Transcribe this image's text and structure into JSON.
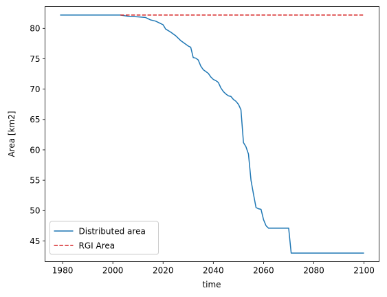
{
  "chart_data": {
    "type": "line",
    "title": "",
    "xlabel": "time",
    "ylabel": "Area [km2]",
    "xlim": [
      1973,
      2106
    ],
    "ylim": [
      41.6,
      83.6
    ],
    "xticks": [
      1980,
      2000,
      2020,
      2040,
      2060,
      2080,
      2100
    ],
    "yticks": [
      45,
      50,
      55,
      60,
      65,
      70,
      75,
      80
    ],
    "grid": false,
    "legend_position": "lower-left",
    "series": [
      {
        "name": "Distributed area",
        "color": "#1f77b4",
        "style": "solid",
        "x": [
          1979,
          2003,
          2006,
          2010,
          2013,
          2015,
          2017,
          2019,
          2020,
          2021,
          2023,
          2025,
          2027,
          2029,
          2030,
          2031,
          2032,
          2033,
          2034,
          2035,
          2036,
          2037,
          2038,
          2039,
          2040,
          2041,
          2042,
          2043,
          2044,
          2045,
          2046,
          2047,
          2048,
          2049,
          2050,
          2051,
          2052,
          2053,
          2054,
          2055,
          2056,
          2057,
          2058,
          2059,
          2060,
          2061,
          2062,
          2063,
          2064,
          2065,
          2067,
          2070,
          2071,
          2080,
          2090,
          2100
        ],
        "y": [
          82.2,
          82.2,
          82.0,
          81.9,
          81.8,
          81.4,
          81.2,
          80.8,
          80.6,
          79.9,
          79.4,
          78.8,
          78.0,
          77.4,
          77.1,
          76.9,
          75.2,
          75.1,
          74.8,
          73.8,
          73.2,
          72.9,
          72.6,
          72.0,
          71.6,
          71.4,
          71.1,
          70.2,
          69.6,
          69.2,
          68.9,
          68.8,
          68.3,
          68.0,
          67.5,
          66.6,
          61.2,
          60.5,
          59.3,
          55.0,
          52.7,
          50.5,
          50.3,
          50.2,
          48.5,
          47.5,
          47.1,
          47.1,
          47.1,
          47.1,
          47.1,
          47.1,
          43.0,
          43.0,
          43.0,
          43.0
        ]
      },
      {
        "name": "RGI Area",
        "color": "#d62728",
        "style": "dashed",
        "x": [
          2003,
          2100
        ],
        "y": [
          82.2,
          82.2
        ]
      }
    ]
  }
}
